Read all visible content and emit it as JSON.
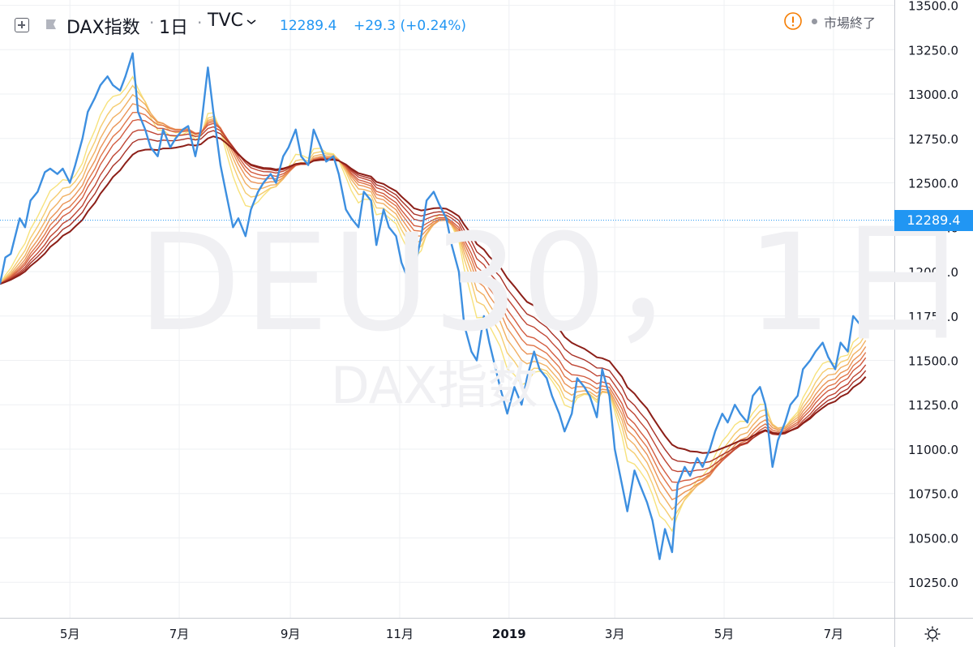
{
  "header": {
    "symbol": "DAX指数",
    "interval": "1日",
    "exchange": "TVC",
    "price": "12289.4",
    "change": "+29.3 (+0.24%)",
    "separator": "·",
    "status": "市場終了"
  },
  "watermark": {
    "main": "DEU30，1日",
    "sub": "DAX指数"
  },
  "price_tag": "12289.4",
  "colors": {
    "price_line": "#3d8fe0",
    "accent": "#2196f3",
    "status_icon": "#f57c00",
    "ribbon": [
      "#f7e27c",
      "#f5cc6f",
      "#f1b062",
      "#ea9356",
      "#e0764a",
      "#d25b3f",
      "#bf4533",
      "#a93227",
      "#8c1f18"
    ]
  },
  "icons": [
    "expand-icon",
    "flag-icon",
    "chevron-down-icon",
    "alert-icon",
    "gear-icon"
  ],
  "chart_data": {
    "type": "line",
    "x_ticks": [
      "5月",
      "7月",
      "9月",
      "11月",
      "2019",
      "3月",
      "5月",
      "7月"
    ],
    "y_ticks": [
      "10250.0",
      "10500.0",
      "10750.0",
      "11000.0",
      "11250.0",
      "11500.0",
      "11750.0",
      "12000.0",
      "12250.0",
      "12500.0",
      "12750.0",
      "13000.0",
      "13250.0",
      "13500.0"
    ],
    "ylim": [
      10050,
      13530
    ],
    "x_range": [
      "2018-03-23",
      "2019-07-30"
    ],
    "last_price": 12289.4,
    "grid": true,
    "series": [
      {
        "values": [
          [
            "2018-03-23",
            11930
          ],
          [
            "2018-03-26",
            12080
          ],
          [
            "2018-03-29",
            12100
          ],
          [
            "2018-04-03",
            12300
          ],
          [
            "2018-04-06",
            12250
          ],
          [
            "2018-04-09",
            12400
          ],
          [
            "2018-04-13",
            12450
          ],
          [
            "2018-04-17",
            12560
          ],
          [
            "2018-04-20",
            12580
          ],
          [
            "2018-04-24",
            12550
          ],
          [
            "2018-04-27",
            12580
          ],
          [
            "2018-05-01",
            12500
          ],
          [
            "2018-05-04",
            12600
          ],
          [
            "2018-05-08",
            12750
          ],
          [
            "2018-05-11",
            12900
          ],
          [
            "2018-05-15",
            12980
          ],
          [
            "2018-05-18",
            13050
          ],
          [
            "2018-05-22",
            13100
          ],
          [
            "2018-05-25",
            13050
          ],
          [
            "2018-05-29",
            13020
          ],
          [
            "2018-06-01",
            13100
          ],
          [
            "2018-06-05",
            13230
          ],
          [
            "2018-06-08",
            12900
          ],
          [
            "2018-06-12",
            12800
          ],
          [
            "2018-06-15",
            12700
          ],
          [
            "2018-06-19",
            12650
          ],
          [
            "2018-06-22",
            12800
          ],
          [
            "2018-06-26",
            12700
          ],
          [
            "2018-06-29",
            12750
          ],
          [
            "2018-07-03",
            12800
          ],
          [
            "2018-07-06",
            12820
          ],
          [
            "2018-07-10",
            12650
          ],
          [
            "2018-07-13",
            12800
          ],
          [
            "2018-07-17",
            13150
          ],
          [
            "2018-07-20",
            12900
          ],
          [
            "2018-07-24",
            12600
          ],
          [
            "2018-07-27",
            12450
          ],
          [
            "2018-07-31",
            12250
          ],
          [
            "2018-08-03",
            12300
          ],
          [
            "2018-08-07",
            12200
          ],
          [
            "2018-08-10",
            12350
          ],
          [
            "2018-08-14",
            12450
          ],
          [
            "2018-08-17",
            12500
          ],
          [
            "2018-08-21",
            12550
          ],
          [
            "2018-08-24",
            12500
          ],
          [
            "2018-08-28",
            12650
          ],
          [
            "2018-08-31",
            12700
          ],
          [
            "2018-09-04",
            12800
          ],
          [
            "2018-09-07",
            12650
          ],
          [
            "2018-09-11",
            12600
          ],
          [
            "2018-09-14",
            12800
          ],
          [
            "2018-09-18",
            12700
          ],
          [
            "2018-09-21",
            12620
          ],
          [
            "2018-09-25",
            12650
          ],
          [
            "2018-09-28",
            12550
          ],
          [
            "2018-10-02",
            12350
          ],
          [
            "2018-10-05",
            12300
          ],
          [
            "2018-10-09",
            12250
          ],
          [
            "2018-10-12",
            12450
          ],
          [
            "2018-10-16",
            12400
          ],
          [
            "2018-10-19",
            12150
          ],
          [
            "2018-10-23",
            12350
          ],
          [
            "2018-10-26",
            12250
          ],
          [
            "2018-10-30",
            12200
          ],
          [
            "2018-11-02",
            12050
          ],
          [
            "2018-11-06",
            11950
          ],
          [
            "2018-11-09",
            12000
          ],
          [
            "2018-11-13",
            12200
          ],
          [
            "2018-11-16",
            12400
          ],
          [
            "2018-11-20",
            12450
          ],
          [
            "2018-11-23",
            12380
          ],
          [
            "2018-11-27",
            12300
          ],
          [
            "2018-11-30",
            12150
          ],
          [
            "2018-12-04",
            12000
          ],
          [
            "2018-12-07",
            11700
          ],
          [
            "2018-12-11",
            11550
          ],
          [
            "2018-12-14",
            11500
          ],
          [
            "2018-12-18",
            11750
          ],
          [
            "2018-12-21",
            11600
          ],
          [
            "2018-12-27",
            11350
          ],
          [
            "2018-12-31",
            11200
          ],
          [
            "2019-01-04",
            11350
          ],
          [
            "2019-01-08",
            11250
          ],
          [
            "2019-01-11",
            11400
          ],
          [
            "2019-01-15",
            11550
          ],
          [
            "2019-01-18",
            11450
          ],
          [
            "2019-01-22",
            11400
          ],
          [
            "2019-01-25",
            11300
          ],
          [
            "2019-01-29",
            11200
          ],
          [
            "2019-02-01",
            11100
          ],
          [
            "2019-02-05",
            11200
          ],
          [
            "2019-02-08",
            11400
          ],
          [
            "2019-02-12",
            11350
          ],
          [
            "2019-02-15",
            11300
          ],
          [
            "2019-02-19",
            11180
          ],
          [
            "2019-02-22",
            11450
          ],
          [
            "2019-02-26",
            11300
          ],
          [
            "2019-03-01",
            11000
          ],
          [
            "2019-03-05",
            10800
          ],
          [
            "2019-03-08",
            10650
          ],
          [
            "2019-03-12",
            10880
          ],
          [
            "2019-03-15",
            10800
          ],
          [
            "2019-03-19",
            10700
          ],
          [
            "2019-03-22",
            10600
          ],
          [
            "2019-03-26",
            10380
          ],
          [
            "2019-03-29",
            10550
          ],
          [
            "2019-04-02",
            10420
          ],
          [
            "2019-04-05",
            10800
          ],
          [
            "2019-04-09",
            10900
          ],
          [
            "2019-04-12",
            10850
          ],
          [
            "2019-04-16",
            10950
          ],
          [
            "2019-04-19",
            10900
          ],
          [
            "2019-04-23",
            11000
          ],
          [
            "2019-04-26",
            11100
          ],
          [
            "2019-04-30",
            11200
          ],
          [
            "2019-05-03",
            11150
          ],
          [
            "2019-05-07",
            11250
          ],
          [
            "2019-05-10",
            11200
          ],
          [
            "2019-05-14",
            11150
          ],
          [
            "2019-05-17",
            11300
          ],
          [
            "2019-05-21",
            11350
          ],
          [
            "2019-05-24",
            11250
          ],
          [
            "2019-05-28",
            10900
          ],
          [
            "2019-05-31",
            11050
          ],
          [
            "2019-06-04",
            11150
          ],
          [
            "2019-06-07",
            11250
          ],
          [
            "2019-06-11",
            11300
          ],
          [
            "2019-06-14",
            11450
          ],
          [
            "2019-06-18",
            11500
          ],
          [
            "2019-06-21",
            11550
          ],
          [
            "2019-06-25",
            11600
          ],
          [
            "2019-06-28",
            11520
          ],
          [
            "2019-07-02",
            11450
          ],
          [
            "2019-07-05",
            11600
          ],
          [
            "2019-07-09",
            11550
          ],
          [
            "2019-07-12",
            11750
          ],
          [
            "2019-07-16",
            11700
          ],
          [
            "2019-07-19",
            11800
          ]
        ]
      }
    ]
  }
}
